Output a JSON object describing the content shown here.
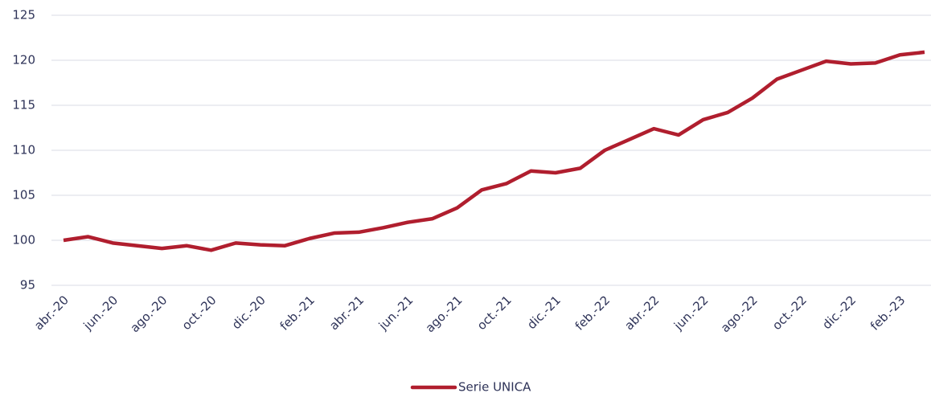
{
  "chart_data": {
    "type": "line",
    "categories": [
      "abr.-20",
      null,
      "jun.-20",
      null,
      "ago.-20",
      null,
      "oct.-20",
      null,
      "dic.-20",
      null,
      "feb.-21",
      null,
      "abr.-21",
      null,
      "jun.-21",
      null,
      "ago.-21",
      null,
      "oct.-21",
      null,
      "dic.-21",
      null,
      "feb.-22",
      null,
      "abr.-22",
      null,
      "jun.-22",
      null,
      "ago.-22",
      null,
      "oct.-22",
      null,
      "dic.-22",
      null,
      "feb.-23",
      null
    ],
    "series": [
      {
        "name": "Serie UNICA",
        "color": "#b01e2e",
        "values": [
          100.0,
          100.4,
          99.7,
          99.4,
          99.1,
          99.4,
          98.9,
          99.7,
          99.5,
          99.4,
          100.2,
          100.8,
          100.9,
          101.4,
          102.0,
          102.4,
          103.6,
          105.6,
          106.3,
          107.7,
          107.5,
          108.0,
          110.0,
          111.2,
          112.4,
          111.7,
          113.4,
          114.2,
          115.8,
          117.9,
          118.9,
          119.9,
          119.6,
          119.7,
          120.6,
          120.9
        ]
      }
    ],
    "ylim": [
      95,
      125
    ],
    "yticks": [
      95,
      100,
      105,
      110,
      115,
      120,
      125
    ],
    "grid": true,
    "legend": "bottom"
  }
}
